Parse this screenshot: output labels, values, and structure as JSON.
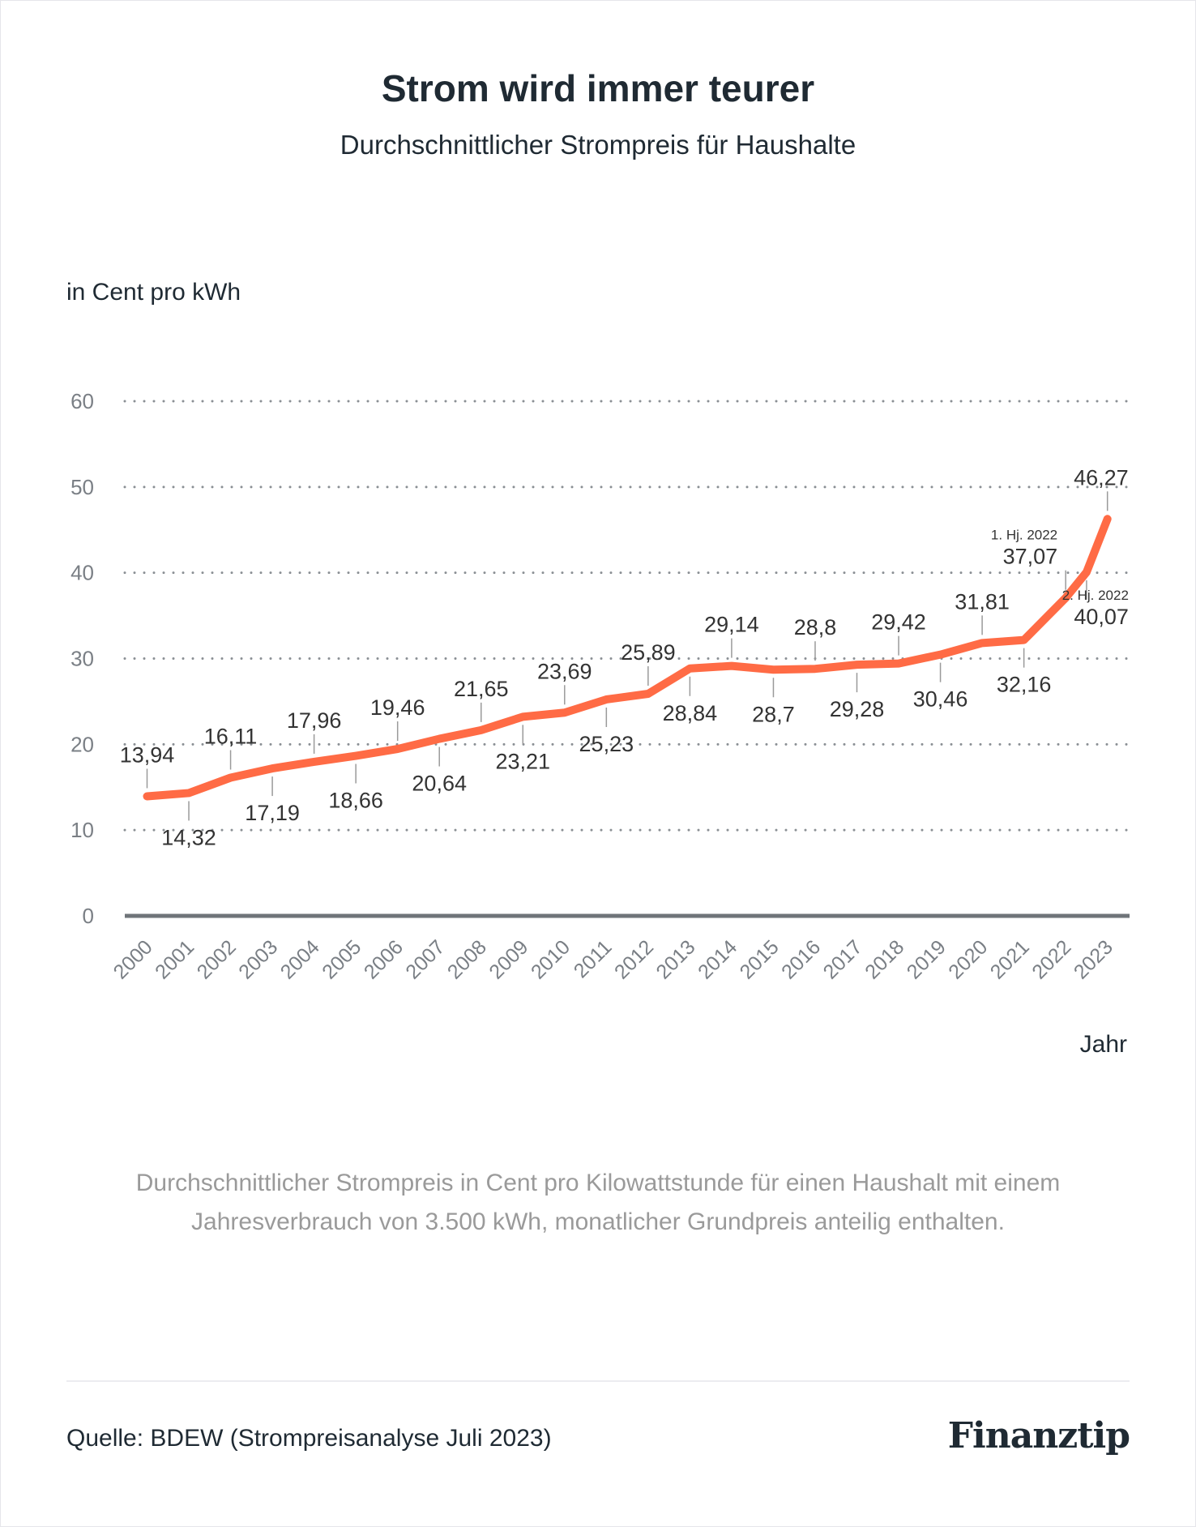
{
  "title": "Strom wird immer teurer",
  "subtitle": "Durchschnittlicher Strompreis für Haushalte",
  "note": "Durchschnittlicher Strompreis in Cent pro Kilowattstunde für einen Haushalt mit einem Jahresverbrauch von 3.500 kWh, monatlicher Grundpreis anteilig enthalten.",
  "source": "Quelle: BDEW (Strompreisanalyse Juli 2023)",
  "logo": "Finanztip",
  "chart_data": {
    "type": "line",
    "ylabel": "in Cent pro kWh",
    "xlabel": "Jahr",
    "ylim": [
      0,
      60
    ],
    "yticks": [
      "0",
      "10",
      "20",
      "30",
      "40",
      "50",
      "60"
    ],
    "grid": "horizontal dotted",
    "line_color": "#FF6B45",
    "categories": [
      "2000",
      "2001",
      "2002",
      "2003",
      "2004",
      "2005",
      "2006",
      "2007",
      "2008",
      "2009",
      "2010",
      "2011",
      "2012",
      "2013",
      "2014",
      "2015",
      "2016",
      "2017",
      "2018",
      "2019",
      "2020",
      "2021",
      "2022",
      "2023"
    ],
    "points": [
      {
        "x": 2000,
        "value": 13.94,
        "label": "13,94",
        "pos": "above"
      },
      {
        "x": 2001,
        "value": 14.32,
        "label": "14,32",
        "pos": "below"
      },
      {
        "x": 2002,
        "value": 16.11,
        "label": "16,11",
        "pos": "above"
      },
      {
        "x": 2003,
        "value": 17.19,
        "label": "17,19",
        "pos": "below"
      },
      {
        "x": 2004,
        "value": 17.96,
        "label": "17,96",
        "pos": "above"
      },
      {
        "x": 2005,
        "value": 18.66,
        "label": "18,66",
        "pos": "below"
      },
      {
        "x": 2006,
        "value": 19.46,
        "label": "19,46",
        "pos": "above"
      },
      {
        "x": 2007,
        "value": 20.64,
        "label": "20,64",
        "pos": "below"
      },
      {
        "x": 2008,
        "value": 21.65,
        "label": "21,65",
        "pos": "above"
      },
      {
        "x": 2009,
        "value": 23.21,
        "label": "23,21",
        "pos": "below"
      },
      {
        "x": 2010,
        "value": 23.69,
        "label": "23,69",
        "pos": "above"
      },
      {
        "x": 2011,
        "value": 25.23,
        "label": "25,23",
        "pos": "below"
      },
      {
        "x": 2012,
        "value": 25.89,
        "label": "25,89",
        "pos": "above"
      },
      {
        "x": 2013,
        "value": 28.84,
        "label": "28,84",
        "pos": "below"
      },
      {
        "x": 2014,
        "value": 29.14,
        "label": "29,14",
        "pos": "above"
      },
      {
        "x": 2015,
        "value": 28.7,
        "label": "28,7",
        "pos": "below"
      },
      {
        "x": 2016,
        "value": 28.8,
        "label": "28,8",
        "pos": "above"
      },
      {
        "x": 2017,
        "value": 29.28,
        "label": "29,28",
        "pos": "below"
      },
      {
        "x": 2018,
        "value": 29.42,
        "label": "29,42",
        "pos": "above"
      },
      {
        "x": 2019,
        "value": 30.46,
        "label": "30,46",
        "pos": "below"
      },
      {
        "x": 2020,
        "value": 31.81,
        "label": "31,81",
        "pos": "above"
      },
      {
        "x": 2021,
        "value": 32.16,
        "label": "32,16",
        "pos": "below"
      },
      {
        "x": 2022,
        "value": 37.07,
        "label": "37,07",
        "pos": "above",
        "annotation": "1. Hj. 2022"
      },
      {
        "x": 2022.5,
        "value": 40.07,
        "label": "40,07",
        "pos": "below",
        "annotation": "2. Hj. 2022"
      },
      {
        "x": 2023,
        "value": 46.27,
        "label": "46,27",
        "pos": "above"
      }
    ]
  }
}
